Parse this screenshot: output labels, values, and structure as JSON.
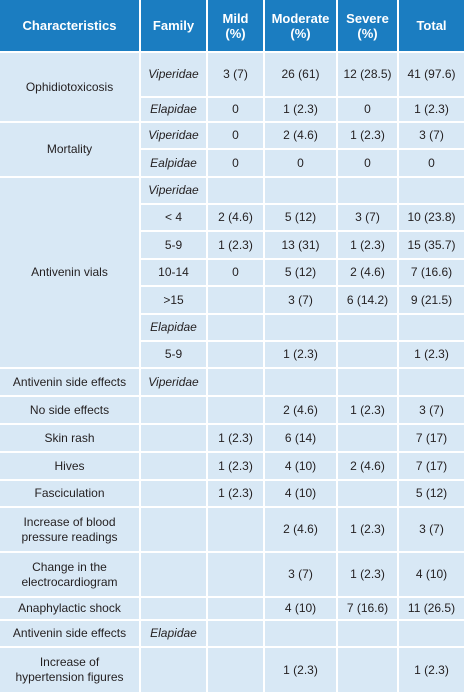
{
  "header": [
    "Characteristics",
    "Family",
    "Mild (%)",
    "Moderate (%)",
    "Severe (%)",
    "Total"
  ],
  "groups": [
    {
      "label": "Ophidiotoxicosis",
      "rows": [
        {
          "family": "Viperidae",
          "italic": true,
          "cells": [
            "3 (7)",
            "26 (61)",
            "12 (28.5)",
            "41 (97.6)"
          ]
        },
        {
          "family": "Elapidae",
          "italic": true,
          "cells": [
            "0",
            "1 (2.3)",
            "0",
            "1 (2.3)"
          ]
        }
      ]
    },
    {
      "label": "Mortality",
      "rows": [
        {
          "family": "Viperidae",
          "italic": true,
          "cells": [
            "0",
            "2 (4.6)",
            "1 (2.3)",
            "3 (7)"
          ]
        },
        {
          "family": "Ealpidae",
          "italic": true,
          "cells": [
            "0",
            "0",
            "0",
            "0"
          ]
        }
      ]
    },
    {
      "label": "Antivenin vials",
      "rows": [
        {
          "family": "Viperidae",
          "italic": true,
          "cells": [
            null,
            null,
            null,
            null
          ]
        },
        {
          "family": "< 4",
          "italic": false,
          "cells": [
            "2 (4.6)",
            "5 (12)",
            "3 (7)",
            "10 (23.8)"
          ]
        },
        {
          "family": "5-9",
          "italic": false,
          "cells": [
            "1 (2.3)",
            "13 (31)",
            "1 (2.3)",
            "15 (35.7)"
          ]
        },
        {
          "family": "10-14",
          "italic": false,
          "cells": [
            "0",
            "5 (12)",
            "2 (4.6)",
            "7 (16.6)"
          ]
        },
        {
          "family": ">15",
          "italic": false,
          "cells": [
            null,
            "3 (7)",
            "6 (14.2)",
            "9 (21.5)"
          ]
        },
        {
          "family": "Elapidae",
          "italic": true,
          "cells": [
            null,
            null,
            null,
            null
          ]
        },
        {
          "family": "5-9",
          "italic": false,
          "cells": [
            null,
            "1 (2.3)",
            null,
            "1 (2.3)"
          ]
        }
      ]
    },
    {
      "label": "Antivenin side effects",
      "rows": [
        {
          "family": "Viperidae",
          "italic": true,
          "cells": [
            null,
            null,
            null,
            null
          ]
        }
      ]
    },
    {
      "label": "No side effects",
      "rows": [
        {
          "family": null,
          "italic": false,
          "cells": [
            null,
            "2 (4.6)",
            "1 (2.3)",
            "3 (7)"
          ]
        }
      ]
    },
    {
      "label": "Skin rash",
      "rows": [
        {
          "family": null,
          "italic": false,
          "cells": [
            "1 (2.3)",
            "6 (14)",
            null,
            "7 (17)"
          ]
        }
      ]
    },
    {
      "label": "Hives",
      "rows": [
        {
          "family": null,
          "italic": false,
          "cells": [
            "1 (2.3)",
            "4 (10)",
            "2 (4.6)",
            "7 (17)"
          ]
        }
      ]
    },
    {
      "label": "Fasciculation",
      "rows": [
        {
          "family": null,
          "italic": false,
          "cells": [
            "1 (2.3)",
            "4 (10)",
            null,
            "5 (12)"
          ]
        }
      ]
    },
    {
      "label": "Increase of blood pressure readings",
      "rows": [
        {
          "family": null,
          "italic": false,
          "cells": [
            null,
            "2 (4.6)",
            "1 (2.3)",
            "3 (7)"
          ]
        }
      ]
    },
    {
      "label": "Change in the electrocardiogram",
      "rows": [
        {
          "family": null,
          "italic": false,
          "cells": [
            null,
            "3 (7)",
            "1 (2.3)",
            "4 (10)"
          ]
        }
      ]
    },
    {
      "label": "Anaphylactic shock",
      "rows": [
        {
          "family": null,
          "italic": false,
          "cells": [
            null,
            "4 (10)",
            "7 (16.6)",
            "11 (26.5)"
          ]
        }
      ]
    },
    {
      "label": "Antivenin side effects",
      "rows": [
        {
          "family": "Elapidae",
          "italic": true,
          "cells": [
            null,
            null,
            null,
            null
          ]
        }
      ]
    },
    {
      "label": "Increase of hypertension figures",
      "rows": [
        {
          "family": null,
          "italic": false,
          "cells": [
            null,
            "1 (2.3)",
            null,
            "1 (2.3)"
          ]
        }
      ]
    }
  ]
}
